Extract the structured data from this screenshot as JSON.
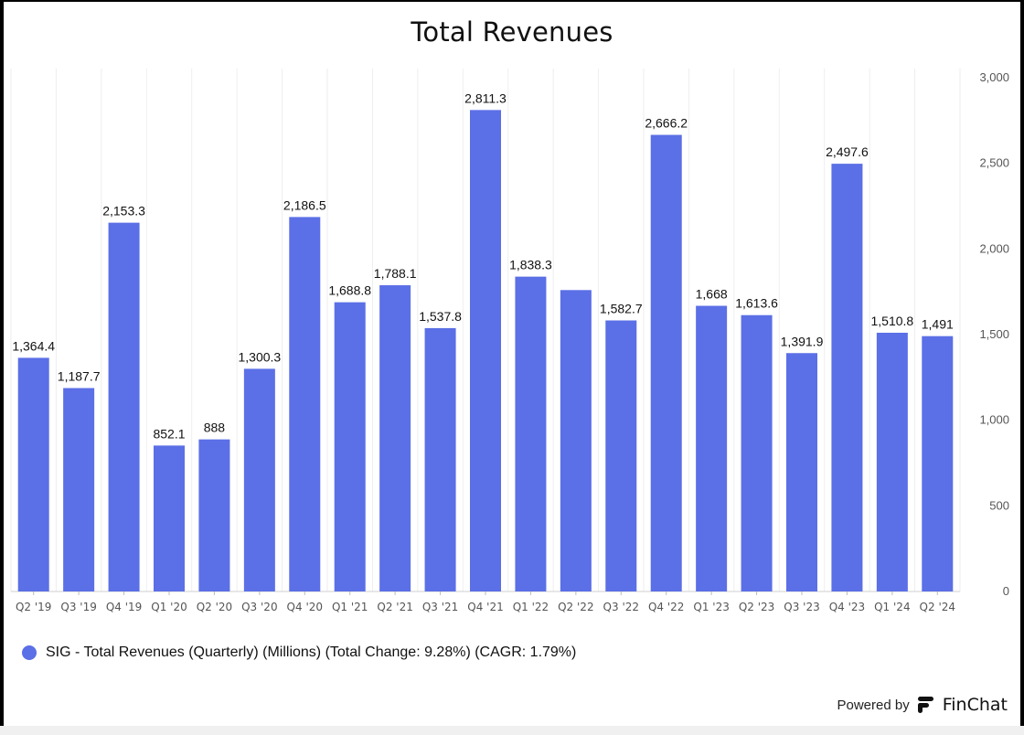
{
  "title": "Total Revenues",
  "legend": {
    "text": "SIG - Total Revenues (Quarterly) (Millions) (Total Change: 9.28%) (CAGR: 1.79%)",
    "color": "#5b6fe6"
  },
  "footer": {
    "powered_by": "Powered by",
    "brand": "FinChat",
    "icon": "finchat-logo-icon"
  },
  "chart_data": {
    "type": "bar",
    "title": "Total Revenues",
    "categories": [
      "Q2 '19",
      "Q3 '19",
      "Q4 '19",
      "Q1 '20",
      "Q2 '20",
      "Q3 '20",
      "Q4 '20",
      "Q1 '21",
      "Q2 '21",
      "Q3 '21",
      "Q4 '21",
      "Q1 '22",
      "Q2 '22",
      "Q3 '22",
      "Q4 '22",
      "Q1 '23",
      "Q2 '23",
      "Q3 '23",
      "Q4 '23",
      "Q1 '24",
      "Q2 '24"
    ],
    "series": [
      {
        "name": "SIG - Total Revenues (Quarterly) (Millions)",
        "values": [
          1364.4,
          1187.7,
          2153.3,
          852.1,
          888,
          1300.3,
          2186.5,
          1688.8,
          1788.1,
          1537.8,
          2811.3,
          1838.3,
          1760,
          1582.7,
          2666.2,
          1668,
          1613.6,
          1391.9,
          2497.6,
          1510.8,
          1491
        ]
      }
    ],
    "data_labels": [
      "1,364.4",
      "1,187.7",
      "2,153.3",
      "852.1",
      "888",
      "1,300.3",
      "2,186.5",
      "1,688.8",
      "1,788.1",
      "1,537.8",
      "2,811.3",
      "1,838.3",
      "",
      "1,582.7",
      "2,666.2",
      "1,668",
      "1,613.6",
      "1,391.9",
      "2,497.6",
      "1,510.8",
      "1,491"
    ],
    "y_ticks": [
      "0",
      "500",
      "1,000",
      "1,500",
      "2,000",
      "2,500",
      "3,000"
    ],
    "ylim": [
      0,
      3000
    ],
    "y_axis_side": "right",
    "grid": "vertical",
    "bar_color": "#5b6fe6",
    "legend_position": "bottom-left"
  }
}
